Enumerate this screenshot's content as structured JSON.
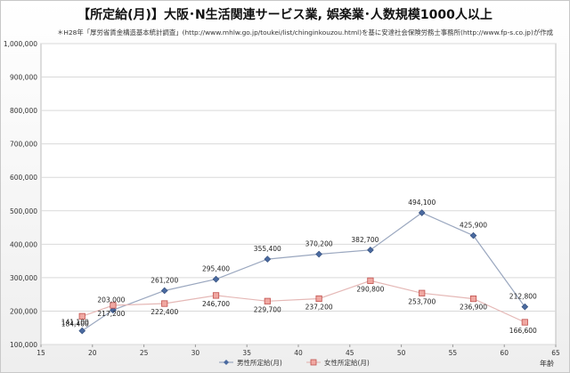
{
  "header": {
    "title": "【所定給(月)】大阪･N生活関連サービス業, 娯楽業･人数規模1000人以上",
    "source": "＊H28年「厚労省賃金構造基本統計調査」(http://www.mhlw.go.jp/toukei/list/chinginkouzou.html)を基に安達社会保険労務士事務所(http://www.fp-s.co.jp)が作成"
  },
  "chart_data": {
    "type": "line",
    "title": "【所定給(月)】大阪･N生活関連サービス業, 娯楽業･人数規模1000人以上",
    "xlabel": "年齢",
    "ylabel": "",
    "xlim": [
      15,
      65
    ],
    "ylim": [
      100000,
      1000000
    ],
    "xticks": [
      "15",
      "20",
      "25",
      "30",
      "35",
      "40",
      "45",
      "50",
      "55",
      "60",
      "65"
    ],
    "yticks": [
      "100,000",
      "200,000",
      "300,000",
      "400,000",
      "500,000",
      "600,000",
      "700,000",
      "800,000",
      "900,000",
      "1,000,000"
    ],
    "grid": true,
    "legend": "bottom",
    "series": [
      {
        "name": "男性所定給(月)",
        "color": "#4a6aa0",
        "x": [
          19,
          22,
          27,
          32,
          37,
          42,
          47,
          52,
          57,
          62
        ],
        "values": [
          141100,
          203000,
          261200,
          295400,
          355400,
          370200,
          382700,
          494100,
          425900,
          212800
        ],
        "labels": [
          "141,100",
          "203,000",
          "261,200",
          "295,400",
          "355,400",
          "370,200",
          "382,700",
          "494,100",
          "425,900",
          "212,800"
        ]
      },
      {
        "name": "女性所定給(月)",
        "color": "#c0504d",
        "x": [
          19,
          22,
          27,
          32,
          37,
          42,
          47,
          52,
          57,
          62
        ],
        "values": [
          184400,
          217200,
          222400,
          246700,
          229700,
          237200,
          290800,
          253700,
          236900,
          166600
        ],
        "labels": [
          "184,400",
          "217,200",
          "222,400",
          "246,700",
          "229,700",
          "237,200",
          "290,800",
          "253,700",
          "236,900",
          "166,600"
        ]
      }
    ]
  }
}
